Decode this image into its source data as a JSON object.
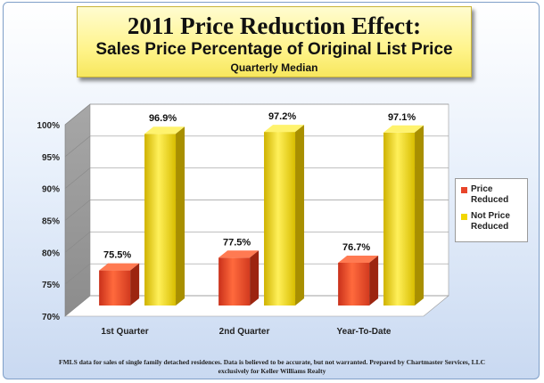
{
  "title": {
    "line1": "2011 Price Reduction Effect:",
    "line2": "Sales Price Percentage of Original List Price",
    "line3": "Quarterly Median"
  },
  "chart_data": {
    "type": "bar",
    "categories": [
      "1st Quarter",
      "2nd Quarter",
      "Year-To-Date"
    ],
    "series": [
      {
        "name": "Price Reduced",
        "values": [
          75.5,
          77.5,
          76.7
        ],
        "labels": [
          "75.5%",
          "77.5%",
          "76.7%"
        ],
        "color": "#e8452a"
      },
      {
        "name": "Not Price Reduced",
        "values": [
          96.9,
          97.2,
          97.1
        ],
        "labels": [
          "96.9%",
          "97.2%",
          "97.1%"
        ],
        "color": "#f2d600"
      }
    ],
    "ylim": [
      70,
      100
    ],
    "yticks": [
      70,
      75,
      80,
      85,
      90,
      95,
      100
    ],
    "ytick_labels": [
      "70%",
      "75%",
      "80%",
      "85%",
      "90%",
      "95%",
      "100%"
    ],
    "grid": true,
    "legend_position": "right"
  },
  "legend": {
    "items": [
      {
        "label": "Price Reduced",
        "color": "#e8452a"
      },
      {
        "label": "Not Price Reduced",
        "color": "#f2d600"
      }
    ]
  },
  "footer": {
    "line1": "FMLS data for sales of single family detached residences.  Data is believed to be accurate, but not warranted.    Prepared by Chartmaster Services, LLC",
    "line2": "exclusively for Keller Williams Realty"
  }
}
